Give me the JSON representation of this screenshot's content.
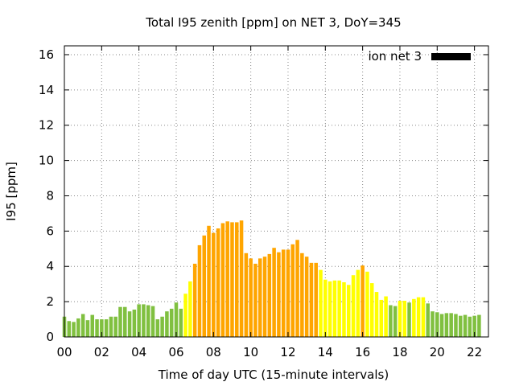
{
  "chart_data": {
    "type": "bar",
    "title": "Total I95 zenith [ppm] on NET 3, DoY=345",
    "xlabel": "Time of day UTC (15-minute intervals)",
    "ylabel": "I95 [ppm]",
    "xlim": [
      0,
      22.75
    ],
    "ylim": [
      0,
      16.5
    ],
    "yticks": [
      0,
      2,
      4,
      6,
      8,
      10,
      12,
      14,
      16
    ],
    "xticks": [
      0,
      2,
      4,
      6,
      8,
      10,
      12,
      14,
      16,
      18,
      20,
      22
    ],
    "xtick_labels": [
      "00",
      "02",
      "04",
      "06",
      "08",
      "10",
      "12",
      "14",
      "16",
      "18",
      "20",
      "22"
    ],
    "grid": true,
    "legend": {
      "position": "top-right",
      "entries": [
        {
          "label": "ion net 3",
          "color": "#000000"
        }
      ]
    },
    "colors": {
      "green": "#80c040",
      "yellow": "#ffff00",
      "orange": "#ffa500"
    },
    "series": [
      {
        "name": "ion net 3",
        "start_hour": 0,
        "step_hours": 0.25,
        "values": [
          1.15,
          0.9,
          0.85,
          1.05,
          1.3,
          0.95,
          1.25,
          1.0,
          1.0,
          1.0,
          1.15,
          1.15,
          1.7,
          1.7,
          1.45,
          1.55,
          1.85,
          1.85,
          1.8,
          1.75,
          1.0,
          1.15,
          1.45,
          1.6,
          1.95,
          1.6,
          2.45,
          3.15,
          4.15,
          5.2,
          5.75,
          6.3,
          5.9,
          6.15,
          6.45,
          6.55,
          6.5,
          6.5,
          6.6,
          4.75,
          4.45,
          4.15,
          4.45,
          4.55,
          4.7,
          5.05,
          4.8,
          4.95,
          4.95,
          5.25,
          5.5,
          4.75,
          4.55,
          4.2,
          4.2,
          3.8,
          3.25,
          3.15,
          3.2,
          3.2,
          3.1,
          2.95,
          3.5,
          3.8,
          4.05,
          3.7,
          3.05,
          2.55,
          2.1,
          2.3,
          1.8,
          1.75,
          2.05,
          2.05,
          1.95,
          2.15,
          2.25,
          2.25,
          1.9,
          1.45,
          1.4,
          1.3,
          1.35,
          1.35,
          1.3,
          1.2,
          1.25,
          1.15,
          1.2,
          1.25
        ],
        "colors": [
          "g",
          "g",
          "g",
          "g",
          "g",
          "g",
          "g",
          "g",
          "g",
          "g",
          "g",
          "g",
          "g",
          "g",
          "g",
          "g",
          "g",
          "g",
          "g",
          "g",
          "g",
          "g",
          "g",
          "g",
          "g",
          "g",
          "y",
          "y",
          "o",
          "o",
          "o",
          "o",
          "o",
          "o",
          "o",
          "o",
          "o",
          "o",
          "o",
          "o",
          "o",
          "o",
          "o",
          "o",
          "o",
          "o",
          "o",
          "o",
          "o",
          "o",
          "o",
          "o",
          "o",
          "o",
          "o",
          "y",
          "y",
          "y",
          "y",
          "y",
          "y",
          "y",
          "y",
          "y",
          "o",
          "y",
          "y",
          "y",
          "y",
          "y",
          "g",
          "g",
          "y",
          "y",
          "g",
          "y",
          "y",
          "y",
          "g",
          "g",
          "g",
          "g",
          "g",
          "g",
          "g",
          "g",
          "g",
          "g",
          "g",
          "g"
        ]
      }
    ]
  }
}
